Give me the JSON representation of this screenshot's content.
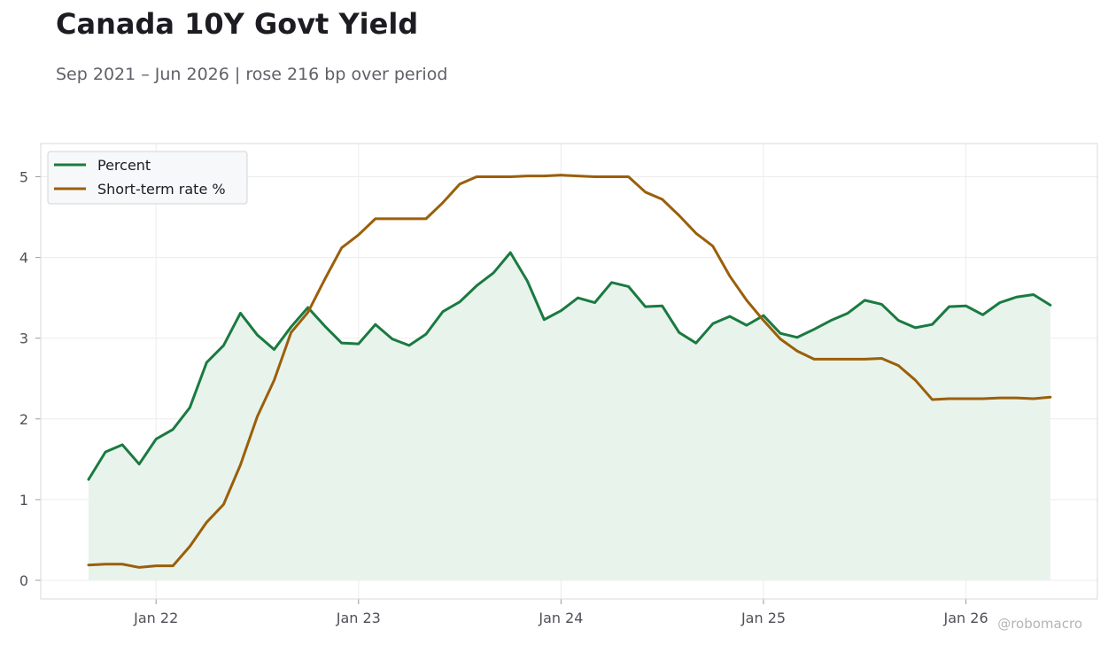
{
  "title": "Canada 10Y Govt Yield",
  "subtitle": "Sep 2021 – Jun 2026 | rose 216 bp over period",
  "watermark": "@robomacro",
  "colors": {
    "yield": "#1a7a40",
    "short_rate": "#9a5f0a",
    "fill": "#e8f3ec",
    "grid": "#ececec",
    "frame": "#d9d9d9"
  },
  "chart_data": {
    "type": "line",
    "x": [
      "2021-09",
      "2021-10",
      "2021-11",
      "2021-12",
      "2022-01",
      "2022-02",
      "2022-03",
      "2022-04",
      "2022-05",
      "2022-06",
      "2022-07",
      "2022-08",
      "2022-09",
      "2022-10",
      "2022-11",
      "2022-12",
      "2023-01",
      "2023-02",
      "2023-03",
      "2023-04",
      "2023-05",
      "2023-06",
      "2023-07",
      "2023-08",
      "2023-09",
      "2023-10",
      "2023-11",
      "2023-12",
      "2024-01",
      "2024-02",
      "2024-03",
      "2024-04",
      "2024-05",
      "2024-06",
      "2024-07",
      "2024-08",
      "2024-09",
      "2024-10",
      "2024-11",
      "2024-12",
      "2025-01",
      "2025-02",
      "2025-03",
      "2025-04",
      "2025-05",
      "2025-06",
      "2025-07",
      "2025-08",
      "2025-09",
      "2025-10",
      "2025-11",
      "2025-12",
      "2026-01",
      "2026-02",
      "2026-03",
      "2026-04",
      "2026-05",
      "2026-06"
    ],
    "series": [
      {
        "name": "Percent",
        "fill": true,
        "values": [
          1.25,
          1.59,
          1.68,
          1.44,
          1.75,
          1.87,
          2.14,
          2.7,
          2.91,
          3.31,
          3.04,
          2.86,
          3.14,
          3.38,
          3.15,
          2.94,
          2.93,
          3.17,
          2.99,
          2.91,
          3.05,
          3.33,
          3.45,
          3.65,
          3.81,
          4.06,
          3.71,
          3.23,
          3.34,
          3.5,
          3.44,
          3.69,
          3.64,
          3.39,
          3.4,
          3.07,
          2.94,
          3.18,
          3.27,
          3.16,
          3.28,
          3.06,
          3.01,
          3.11,
          3.22,
          3.31,
          3.47,
          3.42,
          3.22,
          3.13,
          3.17,
          3.39,
          3.4,
          3.29,
          3.44,
          3.51,
          3.54,
          3.41
        ]
      },
      {
        "name": "Short-term rate %",
        "fill": false,
        "values": [
          0.19,
          0.2,
          0.2,
          0.16,
          0.18,
          0.18,
          0.42,
          0.72,
          0.94,
          1.43,
          2.03,
          2.48,
          3.07,
          3.32,
          3.73,
          4.12,
          4.28,
          4.48,
          4.48,
          4.48,
          4.48,
          4.68,
          4.91,
          5.0,
          5.0,
          5.0,
          5.01,
          5.01,
          5.02,
          5.01,
          5.0,
          5.0,
          5.0,
          4.81,
          4.72,
          4.52,
          4.3,
          4.14,
          3.77,
          3.47,
          3.22,
          2.99,
          2.84,
          2.74,
          2.74,
          2.74,
          2.74,
          2.75,
          2.66,
          2.48,
          2.24,
          2.25,
          2.25,
          2.25,
          2.26,
          2.26,
          2.25,
          2.27
        ]
      }
    ],
    "xticks": [
      {
        "label": "Jan 22",
        "x": "2022-01"
      },
      {
        "label": "Jan 23",
        "x": "2023-01"
      },
      {
        "label": "Jan 24",
        "x": "2024-01"
      },
      {
        "label": "Jan 25",
        "x": "2025-01"
      },
      {
        "label": "Jan 26",
        "x": "2026-01"
      }
    ],
    "yticks": [
      0,
      1,
      2,
      3,
      4,
      5
    ],
    "ylim": [
      -0.22,
      5.4
    ],
    "grid": true,
    "legend_position": "top-left"
  }
}
